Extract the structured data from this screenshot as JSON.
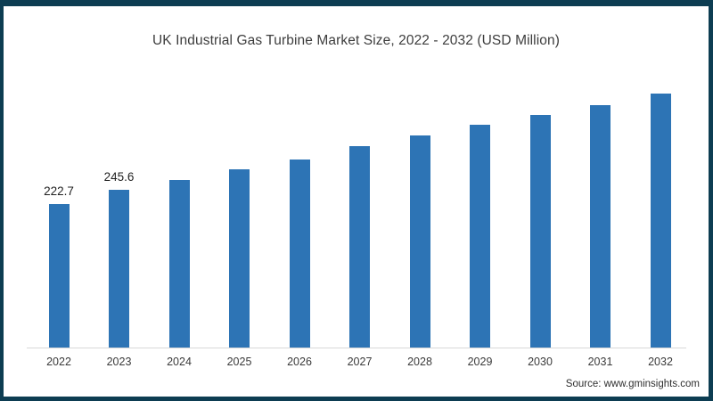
{
  "chart_data": {
    "type": "bar",
    "title": "UK Industrial Gas Turbine Market Size, 2022 - 2032 (USD Million)",
    "categories": [
      "2022",
      "2023",
      "2024",
      "2025",
      "2026",
      "2027",
      "2028",
      "2029",
      "2030",
      "2031",
      "2032"
    ],
    "values": [
      222.7,
      245.6,
      260.6,
      276.8,
      292.0,
      312.8,
      330.0,
      347.0,
      362.2,
      377.4,
      394.4
    ],
    "data_labels": [
      "222.7",
      "245.6",
      null,
      null,
      null,
      null,
      null,
      null,
      null,
      null,
      null
    ],
    "xlabel": "",
    "ylabel": "",
    "ylim": [
      0,
      420
    ],
    "grid": false,
    "legend": false,
    "bar_color": "#2d74b5"
  },
  "source_text": "Source: www.gminsights.com",
  "colors": {
    "frame": "#0d3d52",
    "bar": "#2d74b5",
    "axis_line": "#d9d9d9",
    "title_text": "#3d3d3d",
    "tick_text": "#3a3a3a",
    "label_text": "#1f1f1f",
    "source_text": "#2f2f2f",
    "background": "#ffffff"
  }
}
